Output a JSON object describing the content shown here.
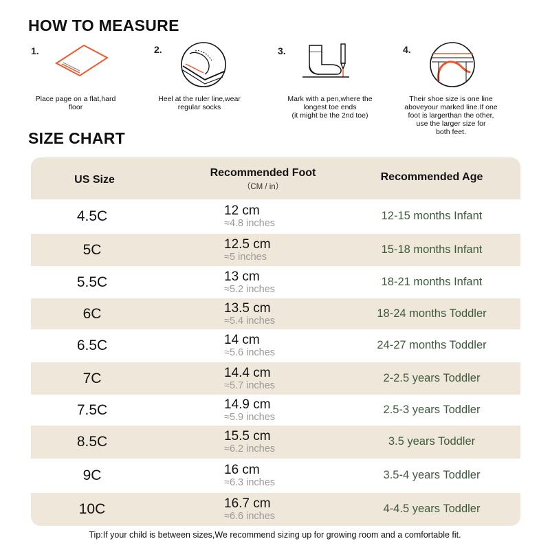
{
  "how_to_measure": {
    "title": "HOW TO MEASURE",
    "steps": [
      {
        "number": "1.",
        "icon": "paper-sheet-icon",
        "text": "Place page on a flat,hard\nfloor"
      },
      {
        "number": "2.",
        "icon": "heel-on-ruler-icon",
        "text": "Heel at the ruler line,wear\nregular socks"
      },
      {
        "number": "3.",
        "icon": "sock-and-pen-icon",
        "text": "Mark with a pen,where the\nlongest toe ends\n(it might be the 2nd toe)"
      },
      {
        "number": "4.",
        "icon": "foot-size-line-icon",
        "text": "Their shoe size is one line\naboveyour marked line.If one\nfoot is largerthan the other,\nuse the larger size for\nboth feet."
      }
    ]
  },
  "size_chart": {
    "title": "SIZE CHART",
    "headers": {
      "size": "US Size",
      "foot": "Recommended Foot",
      "foot_units": "（CM / in）",
      "age": "Recommended Age"
    },
    "rows": [
      {
        "size": "4.5C",
        "cm": "12 cm",
        "inches": "≈4.8 inches",
        "age": "12-15 months Infant"
      },
      {
        "size": "5C",
        "cm": "12.5 cm",
        "inches": "≈5 inches",
        "age": "15-18 months Infant"
      },
      {
        "size": "5.5C",
        "cm": "13 cm",
        "inches": "≈5.2 inches",
        "age": "18-21 months Infant"
      },
      {
        "size": "6C",
        "cm": "13.5 cm",
        "inches": "≈5.4 inches",
        "age": "18-24 months Toddler"
      },
      {
        "size": "6.5C",
        "cm": "14 cm",
        "inches": "≈5.6 inches",
        "age": "24-27 months Toddler"
      },
      {
        "size": "7C",
        "cm": "14.4 cm",
        "inches": "≈5.7 inches",
        "age": "2-2.5 years Toddler"
      },
      {
        "size": "7.5C",
        "cm": "14.9 cm",
        "inches": "≈5.9 inches",
        "age": "2.5-3 years Toddler"
      },
      {
        "size": "8.5C",
        "cm": "15.5 cm",
        "inches": "≈6.2 inches",
        "age": "3.5 years Toddler"
      },
      {
        "size": "9C",
        "cm": "16 cm",
        "inches": "≈6.3 inches",
        "age": "3.5-4 years Toddler"
      },
      {
        "size": "10C",
        "cm": "16.7 cm",
        "inches": "≈6.6 inches",
        "age": "4-4.5 years Toddler"
      }
    ]
  },
  "tip": "Tip:If your child is between sizes,We recommend sizing up for growing room and a comfortable fit.",
  "colors": {
    "accent": "#ee5a2c",
    "header_bg": "#ede5d8",
    "stripe_bg": "#efe7da",
    "age_text": "#3d5a3a",
    "inches_text": "#9a9a9a"
  }
}
